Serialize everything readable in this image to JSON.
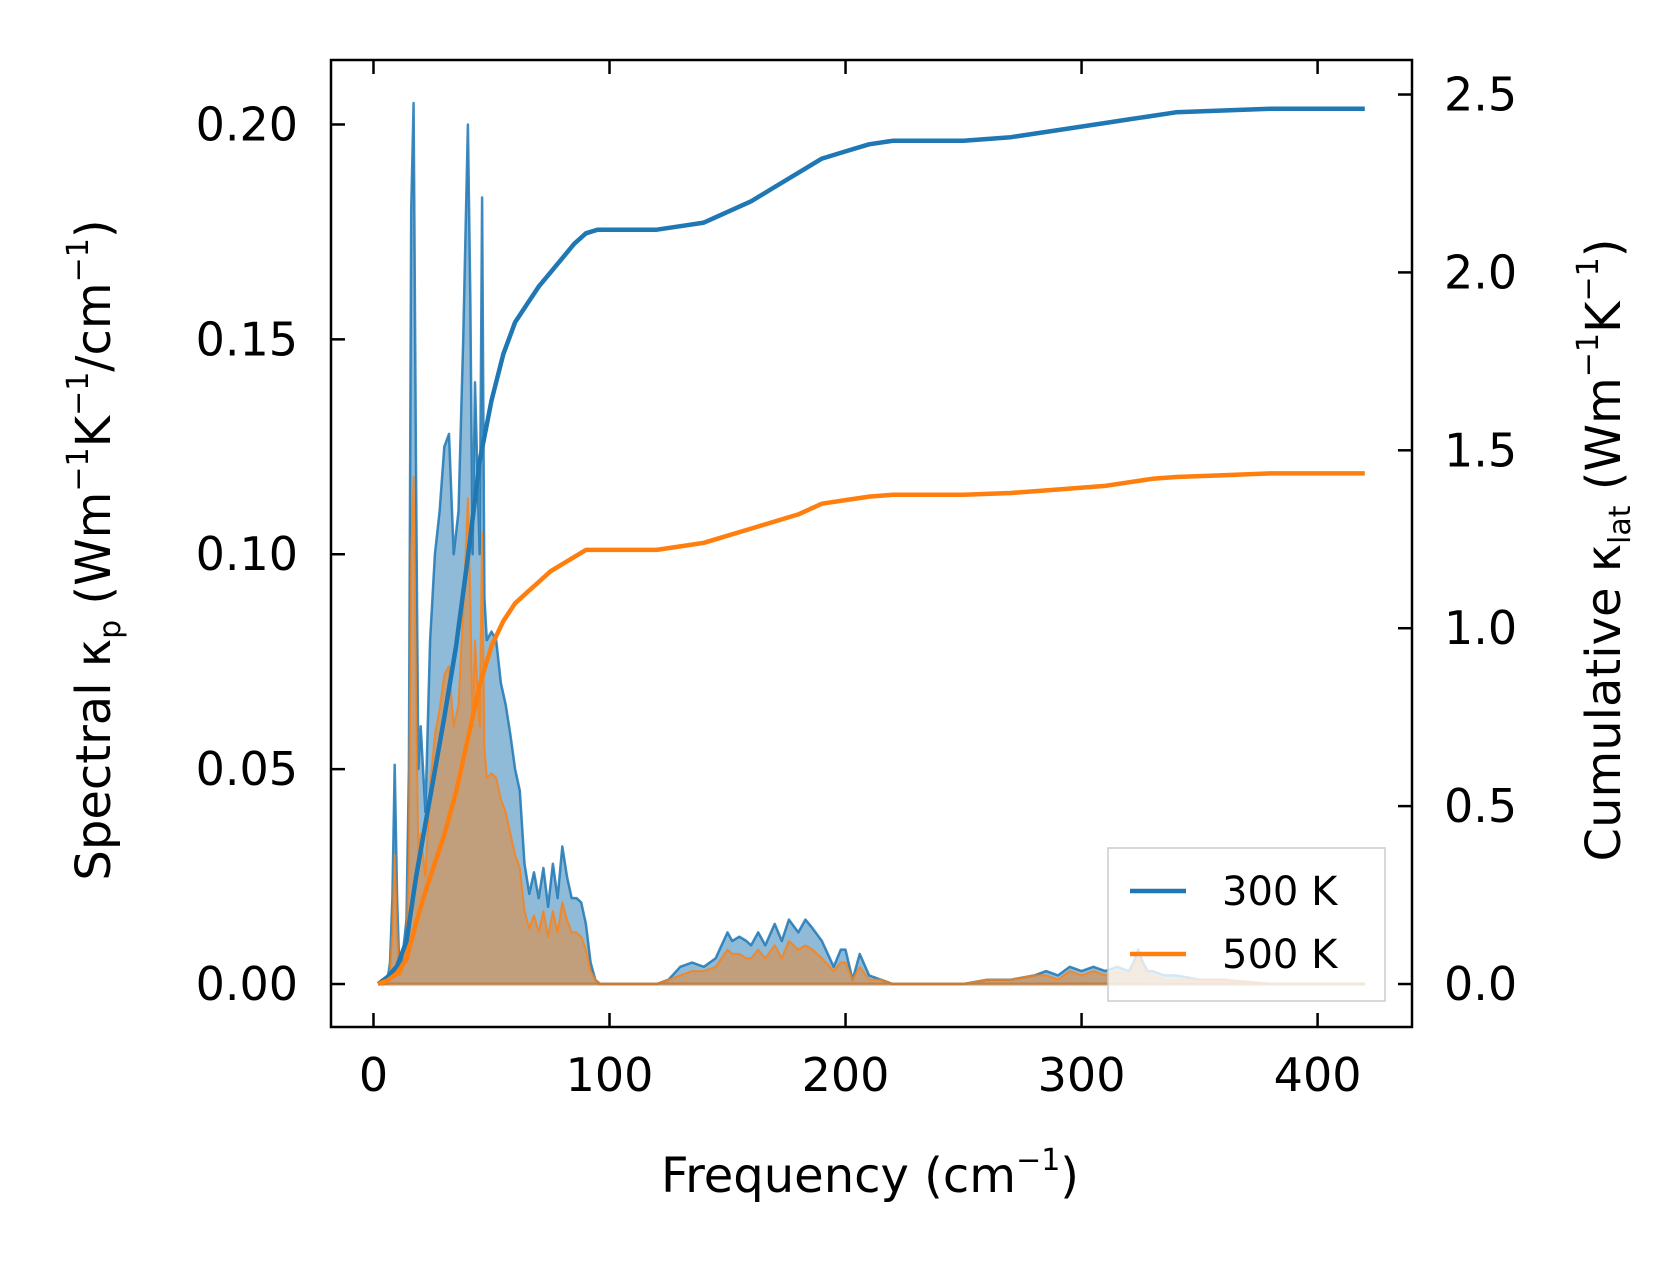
{
  "chart_data": {
    "type": "line",
    "title": "",
    "xlabel": "Frequency (cm",
    "xlabel_sup": "−1",
    "xlabel_end": ")",
    "ylabel_left": {
      "pre": "Spectral κ",
      "sub": "p",
      "mid": " (Wm",
      "sup1": "−1",
      "k": "K",
      "sup2": "−1",
      "per": "/cm",
      "sup3": "−1",
      "end": ")"
    },
    "ylabel_right": {
      "pre": "Cumulative κ",
      "sub": "lat",
      "mid": " (Wm",
      "sup1": "−1",
      "k": "K",
      "sup2": "−1",
      "end": ")"
    },
    "xlim": [
      -18,
      440
    ],
    "ylim_left": [
      -0.01,
      0.215
    ],
    "ylim_right": [
      -0.1208,
      2.597
    ],
    "xticks": [
      0,
      100,
      200,
      300,
      400
    ],
    "xtick_labels": [
      "0",
      "100",
      "200",
      "300",
      "400"
    ],
    "yticks_left": [
      0.0,
      0.05,
      0.1,
      0.15,
      0.2
    ],
    "ytick_labels_left": [
      "0.00",
      "0.05",
      "0.10",
      "0.15",
      "0.20"
    ],
    "yticks_right": [
      0.0,
      0.5,
      1.0,
      1.5,
      2.0,
      2.5
    ],
    "ytick_labels_right": [
      "0.0",
      "0.5",
      "1.0",
      "1.5",
      "2.0",
      "2.5"
    ],
    "legend": {
      "position": "lower-right",
      "entries": [
        "300 K",
        "500 K"
      ]
    },
    "colors": {
      "300K": "#1f77b4",
      "500K": "#ff7f0e",
      "overlap": "#c49a6c"
    },
    "series": [
      {
        "name": "300 K",
        "kind": "cumulative",
        "axis": "right",
        "color": "#1f77b4",
        "x": [
          2,
          6,
          10,
          14,
          18,
          22,
          26,
          30,
          35,
          40,
          45,
          50,
          55,
          60,
          65,
          70,
          75,
          80,
          85,
          90,
          95,
          100,
          110,
          120,
          130,
          140,
          150,
          160,
          170,
          180,
          190,
          200,
          210,
          220,
          230,
          250,
          270,
          290,
          310,
          320,
          330,
          340,
          360,
          380,
          400,
          420
        ],
        "y": [
          0.0,
          0.02,
          0.05,
          0.12,
          0.3,
          0.45,
          0.6,
          0.75,
          0.95,
          1.2,
          1.47,
          1.64,
          1.77,
          1.86,
          1.91,
          1.96,
          2.0,
          2.04,
          2.08,
          2.11,
          2.12,
          2.12,
          2.12,
          2.12,
          2.13,
          2.14,
          2.17,
          2.2,
          2.24,
          2.28,
          2.32,
          2.34,
          2.36,
          2.37,
          2.37,
          2.37,
          2.38,
          2.4,
          2.42,
          2.43,
          2.44,
          2.45,
          2.455,
          2.46,
          2.46,
          2.46
        ]
      },
      {
        "name": "500 K",
        "kind": "cumulative",
        "axis": "right",
        "color": "#ff7f0e",
        "x": [
          2,
          6,
          10,
          14,
          18,
          22,
          26,
          30,
          35,
          40,
          45,
          50,
          55,
          60,
          65,
          70,
          75,
          80,
          85,
          90,
          95,
          100,
          110,
          120,
          130,
          140,
          150,
          160,
          170,
          180,
          190,
          200,
          210,
          220,
          230,
          250,
          270,
          290,
          310,
          320,
          330,
          340,
          360,
          380,
          400,
          420
        ],
        "y": [
          0.0,
          0.01,
          0.03,
          0.07,
          0.17,
          0.26,
          0.34,
          0.42,
          0.54,
          0.69,
          0.84,
          0.95,
          1.02,
          1.07,
          1.1,
          1.13,
          1.16,
          1.18,
          1.2,
          1.22,
          1.22,
          1.22,
          1.22,
          1.22,
          1.23,
          1.24,
          1.26,
          1.28,
          1.3,
          1.32,
          1.35,
          1.36,
          1.37,
          1.375,
          1.375,
          1.375,
          1.38,
          1.39,
          1.4,
          1.41,
          1.42,
          1.425,
          1.43,
          1.435,
          1.435,
          1.435
        ]
      },
      {
        "name": "300 K spectral",
        "kind": "spectral",
        "axis": "left",
        "color": "#1f77b4",
        "x": [
          2,
          4,
          6,
          7,
          8,
          9,
          10,
          11,
          12,
          13,
          14,
          15,
          16,
          17,
          18,
          19,
          20,
          22,
          24,
          26,
          28,
          30,
          32,
          34,
          36,
          38,
          40,
          41,
          42,
          43,
          44,
          45,
          46,
          47,
          48,
          50,
          52,
          54,
          56,
          58,
          60,
          62,
          64,
          66,
          68,
          70,
          72,
          74,
          76,
          78,
          80,
          82,
          84,
          86,
          88,
          90,
          92,
          94,
          96,
          98,
          100,
          110,
          120,
          125,
          130,
          135,
          140,
          145,
          150,
          152,
          155,
          158,
          160,
          163,
          166,
          170,
          173,
          176,
          180,
          183,
          186,
          190,
          195,
          198,
          200,
          203,
          206,
          210,
          215,
          220,
          230,
          240,
          250,
          260,
          270,
          280,
          285,
          290,
          295,
          300,
          305,
          310,
          315,
          320,
          322,
          324,
          326,
          328,
          330,
          335,
          340,
          350,
          360,
          380,
          400,
          420
        ],
        "y": [
          0.0,
          0.0,
          0.001,
          0.005,
          0.02,
          0.051,
          0.02,
          0.003,
          0.005,
          0.01,
          0.015,
          0.05,
          0.18,
          0.205,
          0.12,
          0.05,
          0.06,
          0.04,
          0.08,
          0.1,
          0.11,
          0.125,
          0.128,
          0.1,
          0.11,
          0.15,
          0.2,
          0.16,
          0.1,
          0.14,
          0.12,
          0.1,
          0.183,
          0.09,
          0.08,
          0.082,
          0.08,
          0.07,
          0.065,
          0.058,
          0.05,
          0.045,
          0.028,
          0.021,
          0.026,
          0.02,
          0.027,
          0.018,
          0.028,
          0.02,
          0.032,
          0.025,
          0.02,
          0.02,
          0.019,
          0.014,
          0.005,
          0.001,
          0.0,
          0.0,
          0.0,
          0.0,
          0.0,
          0.001,
          0.004,
          0.005,
          0.004,
          0.006,
          0.012,
          0.01,
          0.011,
          0.01,
          0.009,
          0.012,
          0.009,
          0.014,
          0.01,
          0.015,
          0.012,
          0.015,
          0.013,
          0.01,
          0.004,
          0.008,
          0.008,
          0.001,
          0.007,
          0.002,
          0.001,
          0.0,
          0.0,
          0.0,
          0.0,
          0.001,
          0.001,
          0.002,
          0.003,
          0.002,
          0.004,
          0.003,
          0.004,
          0.003,
          0.004,
          0.003,
          0.005,
          0.008,
          0.005,
          0.003,
          0.003,
          0.002,
          0.002,
          0.001,
          0.001,
          0.0,
          0.0,
          0.0
        ]
      },
      {
        "name": "500 K spectral",
        "kind": "spectral",
        "axis": "left",
        "color": "#ff7f0e",
        "x": [
          2,
          4,
          6,
          7,
          8,
          9,
          10,
          11,
          12,
          13,
          14,
          15,
          16,
          17,
          18,
          19,
          20,
          22,
          24,
          26,
          28,
          30,
          32,
          34,
          36,
          38,
          40,
          41,
          42,
          43,
          44,
          45,
          46,
          47,
          48,
          50,
          52,
          54,
          56,
          58,
          60,
          62,
          64,
          66,
          68,
          70,
          72,
          74,
          76,
          78,
          80,
          82,
          84,
          86,
          88,
          90,
          92,
          94,
          96,
          98,
          100,
          110,
          120,
          125,
          130,
          135,
          140,
          145,
          150,
          152,
          155,
          158,
          160,
          163,
          166,
          170,
          173,
          176,
          180,
          183,
          186,
          190,
          195,
          198,
          200,
          203,
          206,
          210,
          215,
          220,
          230,
          240,
          250,
          260,
          270,
          280,
          285,
          290,
          295,
          300,
          305,
          310,
          315,
          320,
          322,
          324,
          326,
          328,
          330,
          335,
          340,
          350,
          360,
          380,
          400,
          420
        ],
        "y": [
          0.0,
          0.0,
          0.0,
          0.003,
          0.012,
          0.03,
          0.012,
          0.002,
          0.003,
          0.006,
          0.009,
          0.03,
          0.1,
          0.118,
          0.07,
          0.03,
          0.035,
          0.025,
          0.046,
          0.058,
          0.064,
          0.072,
          0.074,
          0.06,
          0.065,
          0.087,
          0.113,
          0.09,
          0.06,
          0.08,
          0.07,
          0.06,
          0.105,
          0.055,
          0.048,
          0.049,
          0.048,
          0.043,
          0.04,
          0.035,
          0.03,
          0.027,
          0.017,
          0.013,
          0.016,
          0.012,
          0.017,
          0.011,
          0.017,
          0.012,
          0.019,
          0.015,
          0.012,
          0.012,
          0.011,
          0.008,
          0.003,
          0.001,
          0.0,
          0.0,
          0.0,
          0.0,
          0.0,
          0.001,
          0.002,
          0.003,
          0.003,
          0.004,
          0.008,
          0.007,
          0.007,
          0.006,
          0.006,
          0.008,
          0.006,
          0.009,
          0.006,
          0.01,
          0.008,
          0.009,
          0.008,
          0.006,
          0.003,
          0.005,
          0.005,
          0.001,
          0.004,
          0.001,
          0.001,
          0.0,
          0.0,
          0.0,
          0.0,
          0.001,
          0.001,
          0.002,
          0.002,
          0.001,
          0.003,
          0.002,
          0.003,
          0.002,
          0.003,
          0.002,
          0.004,
          0.006,
          0.004,
          0.002,
          0.002,
          0.001,
          0.001,
          0.001,
          0.001,
          0.0,
          0.0,
          0.0
        ]
      }
    ]
  }
}
